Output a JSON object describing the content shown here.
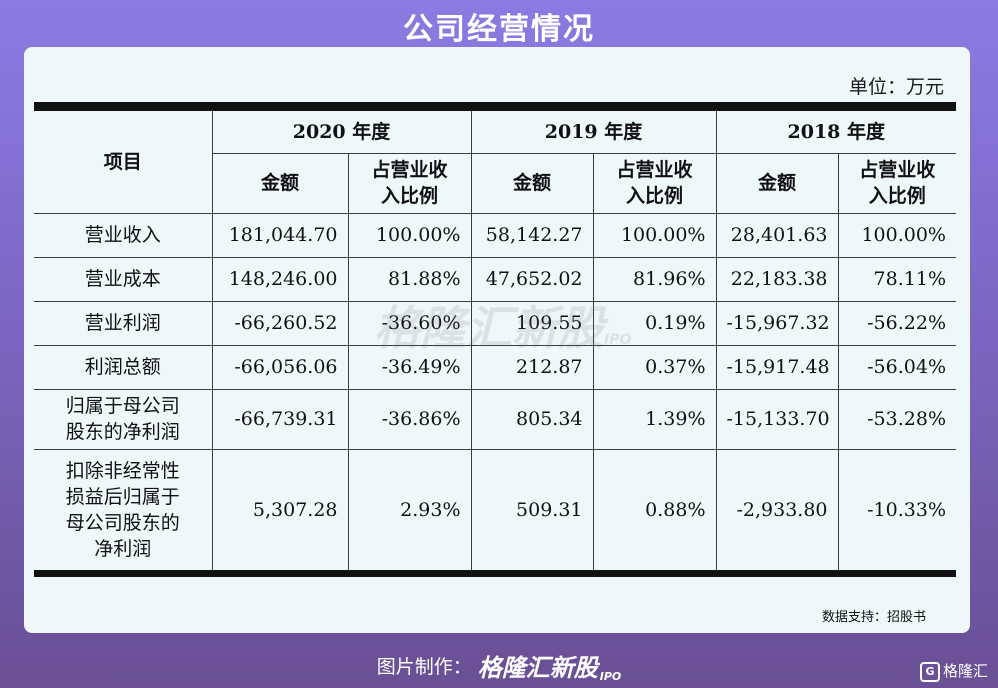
{
  "title": "公司经营情况",
  "unit_label": "单位：万元",
  "table": {
    "item_header": "项目",
    "years": [
      "2020 年度",
      "2019 年度",
      "2018 年度"
    ],
    "amount_label": "金额",
    "ratio_label_line1": "占营业收",
    "ratio_label_line2": "入比例",
    "rows": [
      {
        "item_lines": [
          "营业收入"
        ],
        "v": [
          "181,044.70",
          "100.00%",
          "58,142.27",
          "100.00%",
          "28,401.63",
          "100.00%"
        ]
      },
      {
        "item_lines": [
          "营业成本"
        ],
        "v": [
          "148,246.00",
          "81.88%",
          "47,652.02",
          "81.96%",
          "22,183.38",
          "78.11%"
        ]
      },
      {
        "item_lines": [
          "营业利润"
        ],
        "v": [
          "-66,260.52",
          "-36.60%",
          "109.55",
          "0.19%",
          "-15,967.32",
          "-56.22%"
        ]
      },
      {
        "item_lines": [
          "利润总额"
        ],
        "v": [
          "-66,056.06",
          "-36.49%",
          "212.87",
          "0.37%",
          "-15,917.48",
          "-56.04%"
        ]
      },
      {
        "item_lines": [
          "归属于母公司",
          "股东的净利润"
        ],
        "v": [
          "-66,739.31",
          "-36.86%",
          "805.34",
          "1.39%",
          "-15,133.70",
          "-53.28%"
        ]
      },
      {
        "item_lines": [
          "扣除非经常性",
          "损益后归属于",
          "母公司股东的",
          "净利润"
        ],
        "v": [
          "5,307.28",
          "2.93%",
          "509.31",
          "0.88%",
          "-2,933.80",
          "-10.33%"
        ]
      }
    ]
  },
  "watermark": "格隆汇新股",
  "watermark_tag": "IPO",
  "source_label": "数据支持：招股书",
  "credit_label": "图片制作：",
  "credit_brand": "格隆汇新股",
  "credit_tag": "IPO",
  "corner_logo_text": "格隆汇",
  "corner_logo_glyph": "G"
}
